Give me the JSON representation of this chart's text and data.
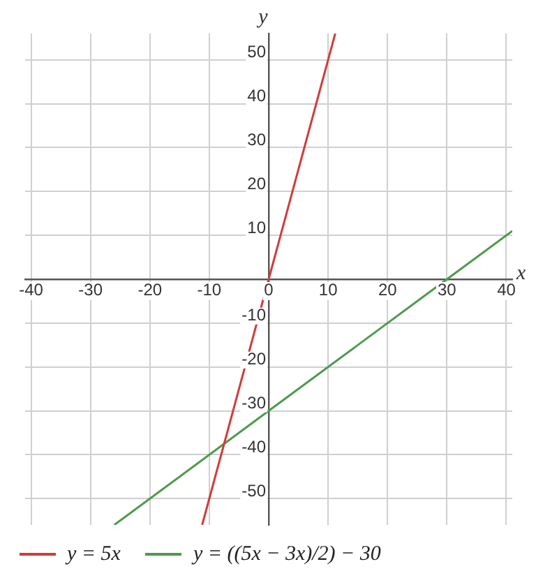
{
  "chart_data": {
    "type": "line",
    "xlabel": "x",
    "ylabel": "y",
    "xlim": [
      -41,
      41
    ],
    "ylim": [
      -56,
      56
    ],
    "xticks": [
      -40,
      -30,
      -20,
      -10,
      0,
      10,
      20,
      30,
      40
    ],
    "yticks": [
      -50,
      -40,
      -30,
      -20,
      -10,
      10,
      20,
      30,
      40,
      50
    ],
    "grid": true,
    "legend": "bottom",
    "marker": "none",
    "line_style": "solid",
    "series": [
      {
        "name": "y = 5x",
        "color": "#d33b3b",
        "x": [
          -11.2,
          0,
          11.2
        ],
        "values": [
          -56,
          0,
          56
        ]
      },
      {
        "name": "y = ((5x − 3x)/2) − 30",
        "color": "#4e9a4e",
        "x": [
          -26,
          0,
          30,
          41
        ],
        "values": [
          -56,
          -30,
          0,
          11
        ]
      }
    ]
  }
}
